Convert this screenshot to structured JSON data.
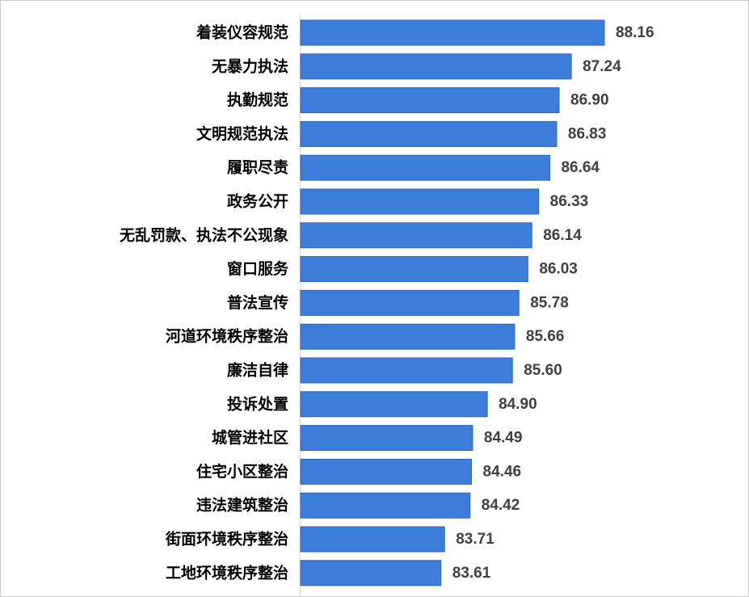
{
  "chart_data": {
    "type": "bar",
    "orientation": "horizontal",
    "title": "",
    "xlabel": "",
    "ylabel": "",
    "categories": [
      "着装仪容规范",
      "无暴力执法",
      "执勤规范",
      "文明规范执法",
      "履职尽责",
      "政务公开",
      "无乱罚款、执法不公现象",
      "窗口服务",
      "普法宣传",
      "河道环境秩序整治",
      "廉洁自律",
      "投诉处置",
      "城管进社区",
      "住宅小区整治",
      "违法建筑整治",
      "街面环境秩序整治",
      "工地环境秩序整治"
    ],
    "values": [
      88.16,
      87.24,
      86.9,
      86.83,
      86.64,
      86.33,
      86.14,
      86.03,
      85.78,
      85.66,
      85.6,
      84.9,
      84.49,
      84.46,
      84.42,
      83.71,
      83.61
    ],
    "value_labels": [
      "88.16",
      "87.24",
      "86.90",
      "86.83",
      "86.64",
      "86.33",
      "86.14",
      "86.03",
      "85.78",
      "85.66",
      "85.60",
      "84.90",
      "84.49",
      "84.46",
      "84.42",
      "83.71",
      "83.61"
    ],
    "xlim": [
      79.7,
      88.16
    ],
    "grid": false,
    "legend": "none",
    "bar_color": "#3b7dd8",
    "bar_edge_color": "#2f65b0",
    "axis_color": "#d9d9d9"
  }
}
